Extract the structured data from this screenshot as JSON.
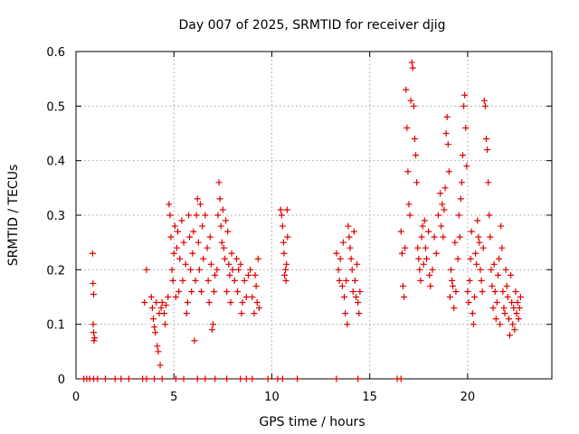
{
  "chart_data": {
    "type": "scatter",
    "title": "Day 007 of 2025, SRMTID for receiver djig",
    "xlabel": "GPS time / hours",
    "ylabel": "SRMTID / TECUs",
    "xlim": [
      0,
      24.3
    ],
    "ylim": [
      0,
      0.6
    ],
    "xticks": [
      0,
      5,
      10,
      15,
      20
    ],
    "xtick_labels": [
      "0",
      "5",
      "10",
      "15",
      "20"
    ],
    "yticks": [
      0,
      0.1,
      0.2,
      0.3,
      0.4,
      0.5,
      0.6
    ],
    "ytick_labels": [
      "0",
      "0.1",
      "0.2",
      "0.3",
      "0.4",
      "0.5",
      "0.6"
    ],
    "grid": true,
    "marker": "plus",
    "color": "#e00000",
    "series": [
      {
        "name": "SRMTID",
        "points": [
          [
            0.4,
            0
          ],
          [
            0.55,
            0
          ],
          [
            0.7,
            0
          ],
          [
            0.9,
            0
          ],
          [
            1.1,
            0
          ],
          [
            1.5,
            0
          ],
          [
            2.0,
            0
          ],
          [
            2.3,
            0
          ],
          [
            2.7,
            0
          ],
          [
            3.4,
            0
          ],
          [
            3.6,
            0
          ],
          [
            4.0,
            0
          ],
          [
            4.4,
            0
          ],
          [
            5.1,
            0
          ],
          [
            5.5,
            0
          ],
          [
            6.2,
            0
          ],
          [
            6.6,
            0
          ],
          [
            7.1,
            0
          ],
          [
            7.7,
            0
          ],
          [
            8.4,
            0
          ],
          [
            8.7,
            0
          ],
          [
            9.0,
            0
          ],
          [
            9.8,
            0
          ],
          [
            10.3,
            0
          ],
          [
            10.55,
            0
          ],
          [
            11.3,
            0
          ],
          [
            13.3,
            0
          ],
          [
            14.4,
            0
          ],
          [
            16.4,
            0
          ],
          [
            16.6,
            0
          ],
          [
            0.85,
            0.23
          ],
          [
            0.87,
            0.175
          ],
          [
            0.9,
            0.155
          ],
          [
            0.88,
            0.1
          ],
          [
            0.9,
            0.085
          ],
          [
            0.92,
            0.07
          ],
          [
            0.95,
            0.075
          ],
          [
            3.6,
            0.2
          ],
          [
            3.5,
            0.14
          ],
          [
            3.85,
            0.15
          ],
          [
            3.9,
            0.13
          ],
          [
            3.95,
            0.11
          ],
          [
            4.0,
            0.095
          ],
          [
            4.05,
            0.085
          ],
          [
            4.1,
            0.14
          ],
          [
            4.15,
            0.06
          ],
          [
            4.2,
            0.05
          ],
          [
            4.25,
            0.12
          ],
          [
            4.3,
            0.025
          ],
          [
            4.35,
            0.13
          ],
          [
            4.4,
            0.14
          ],
          [
            4.5,
            0.12
          ],
          [
            4.55,
            0.1
          ],
          [
            4.6,
            0.135
          ],
          [
            4.7,
            0.15
          ],
          [
            4.75,
            0.32
          ],
          [
            4.8,
            0.3
          ],
          [
            4.85,
            0.26
          ],
          [
            4.9,
            0.2
          ],
          [
            4.95,
            0.18
          ],
          [
            5.0,
            0.23
          ],
          [
            5.05,
            0.28
          ],
          [
            5.1,
            0.15
          ],
          [
            5.15,
            0.24
          ],
          [
            5.2,
            0.27
          ],
          [
            5.25,
            0.16
          ],
          [
            5.3,
            0.22
          ],
          [
            5.4,
            0.29
          ],
          [
            5.45,
            0.18
          ],
          [
            5.5,
            0.25
          ],
          [
            5.6,
            0.21
          ],
          [
            5.65,
            0.12
          ],
          [
            5.7,
            0.14
          ],
          [
            5.75,
            0.3
          ],
          [
            5.8,
            0.26
          ],
          [
            5.85,
            0.2
          ],
          [
            5.9,
            0.16
          ],
          [
            5.95,
            0.23
          ],
          [
            6.0,
            0.27
          ],
          [
            6.05,
            0.07
          ],
          [
            6.1,
            0.18
          ],
          [
            6.15,
            0.3
          ],
          [
            6.2,
            0.33
          ],
          [
            6.25,
            0.25
          ],
          [
            6.3,
            0.2
          ],
          [
            6.35,
            0.32
          ],
          [
            6.4,
            0.16
          ],
          [
            6.45,
            0.28
          ],
          [
            6.5,
            0.22
          ],
          [
            6.6,
            0.3
          ],
          [
            6.7,
            0.24
          ],
          [
            6.75,
            0.18
          ],
          [
            6.8,
            0.14
          ],
          [
            6.85,
            0.26
          ],
          [
            6.9,
            0.21
          ],
          [
            6.95,
            0.09
          ],
          [
            7.0,
            0.1
          ],
          [
            7.05,
            0.16
          ],
          [
            7.1,
            0.19
          ],
          [
            7.2,
            0.2
          ],
          [
            7.25,
            0.3
          ],
          [
            7.3,
            0.36
          ],
          [
            7.35,
            0.33
          ],
          [
            7.4,
            0.28
          ],
          [
            7.45,
            0.25
          ],
          [
            7.5,
            0.31
          ],
          [
            7.55,
            0.24
          ],
          [
            7.6,
            0.22
          ],
          [
            7.65,
            0.29
          ],
          [
            7.7,
            0.16
          ],
          [
            7.75,
            0.27
          ],
          [
            7.8,
            0.21
          ],
          [
            7.85,
            0.19
          ],
          [
            7.9,
            0.14
          ],
          [
            7.95,
            0.23
          ],
          [
            8.0,
            0.2
          ],
          [
            8.1,
            0.18
          ],
          [
            8.2,
            0.22
          ],
          [
            8.25,
            0.16
          ],
          [
            8.3,
            0.2
          ],
          [
            8.4,
            0.21
          ],
          [
            8.45,
            0.12
          ],
          [
            8.5,
            0.14
          ],
          [
            8.6,
            0.18
          ],
          [
            8.7,
            0.15
          ],
          [
            8.8,
            0.19
          ],
          [
            8.9,
            0.2
          ],
          [
            9.0,
            0.15
          ],
          [
            9.1,
            0.12
          ],
          [
            9.15,
            0.19
          ],
          [
            9.2,
            0.17
          ],
          [
            9.25,
            0.14
          ],
          [
            9.3,
            0.22
          ],
          [
            9.35,
            0.13
          ],
          [
            10.45,
            0.31
          ],
          [
            10.5,
            0.3
          ],
          [
            10.55,
            0.28
          ],
          [
            10.6,
            0.25
          ],
          [
            10.62,
            0.23
          ],
          [
            10.65,
            0.19
          ],
          [
            10.7,
            0.2
          ],
          [
            10.72,
            0.18
          ],
          [
            10.75,
            0.21
          ],
          [
            10.78,
            0.31
          ],
          [
            10.8,
            0.26
          ],
          [
            13.3,
            0.23
          ],
          [
            13.4,
            0.2
          ],
          [
            13.45,
            0.18
          ],
          [
            13.5,
            0.22
          ],
          [
            13.6,
            0.17
          ],
          [
            13.65,
            0.25
          ],
          [
            13.7,
            0.15
          ],
          [
            13.75,
            0.12
          ],
          [
            13.8,
            0.18
          ],
          [
            13.85,
            0.1
          ],
          [
            13.9,
            0.28
          ],
          [
            13.95,
            0.26
          ],
          [
            14.0,
            0.24
          ],
          [
            14.05,
            0.22
          ],
          [
            14.1,
            0.2
          ],
          [
            14.15,
            0.16
          ],
          [
            14.2,
            0.27
          ],
          [
            14.25,
            0.18
          ],
          [
            14.3,
            0.15
          ],
          [
            14.35,
            0.21
          ],
          [
            14.4,
            0.14
          ],
          [
            14.45,
            0.12
          ],
          [
            14.5,
            0.16
          ],
          [
            16.6,
            0.27
          ],
          [
            16.65,
            0.23
          ],
          [
            16.7,
            0.17
          ],
          [
            16.75,
            0.15
          ],
          [
            16.8,
            0.24
          ],
          [
            16.85,
            0.53
          ],
          [
            16.9,
            0.46
          ],
          [
            16.95,
            0.38
          ],
          [
            17.0,
            0.32
          ],
          [
            17.05,
            0.3
          ],
          [
            17.1,
            0.51
          ],
          [
            17.15,
            0.58
          ],
          [
            17.2,
            0.57
          ],
          [
            17.25,
            0.5
          ],
          [
            17.3,
            0.44
          ],
          [
            17.35,
            0.41
          ],
          [
            17.4,
            0.36
          ],
          [
            17.45,
            0.24
          ],
          [
            17.5,
            0.22
          ],
          [
            17.55,
            0.2
          ],
          [
            17.6,
            0.18
          ],
          [
            17.65,
            0.26
          ],
          [
            17.7,
            0.28
          ],
          [
            17.75,
            0.21
          ],
          [
            17.8,
            0.29
          ],
          [
            17.85,
            0.24
          ],
          [
            17.9,
            0.22
          ],
          [
            18.0,
            0.27
          ],
          [
            18.05,
            0.19
          ],
          [
            18.1,
            0.17
          ],
          [
            18.2,
            0.2
          ],
          [
            18.3,
            0.26
          ],
          [
            18.4,
            0.23
          ],
          [
            18.5,
            0.3
          ],
          [
            18.6,
            0.34
          ],
          [
            18.65,
            0.28
          ],
          [
            18.7,
            0.32
          ],
          [
            18.75,
            0.26
          ],
          [
            18.8,
            0.31
          ],
          [
            18.85,
            0.35
          ],
          [
            18.9,
            0.45
          ],
          [
            18.95,
            0.48
          ],
          [
            19.0,
            0.43
          ],
          [
            19.05,
            0.38
          ],
          [
            19.1,
            0.15
          ],
          [
            19.15,
            0.2
          ],
          [
            19.2,
            0.18
          ],
          [
            19.25,
            0.17
          ],
          [
            19.3,
            0.13
          ],
          [
            19.35,
            0.25
          ],
          [
            19.4,
            0.16
          ],
          [
            19.5,
            0.22
          ],
          [
            19.55,
            0.3
          ],
          [
            19.6,
            0.26
          ],
          [
            19.65,
            0.33
          ],
          [
            19.7,
            0.36
          ],
          [
            19.75,
            0.41
          ],
          [
            19.8,
            0.5
          ],
          [
            19.85,
            0.52
          ],
          [
            19.9,
            0.46
          ],
          [
            19.95,
            0.39
          ],
          [
            20.0,
            0.16
          ],
          [
            20.05,
            0.14
          ],
          [
            20.1,
            0.18
          ],
          [
            20.15,
            0.22
          ],
          [
            20.2,
            0.27
          ],
          [
            20.25,
            0.12
          ],
          [
            20.3,
            0.1
          ],
          [
            20.35,
            0.15
          ],
          [
            20.4,
            0.23
          ],
          [
            20.45,
            0.21
          ],
          [
            20.5,
            0.29
          ],
          [
            20.55,
            0.26
          ],
          [
            20.6,
            0.25
          ],
          [
            20.65,
            0.2
          ],
          [
            20.7,
            0.18
          ],
          [
            20.75,
            0.16
          ],
          [
            20.8,
            0.24
          ],
          [
            20.85,
            0.51
          ],
          [
            20.9,
            0.5
          ],
          [
            20.95,
            0.44
          ],
          [
            21.0,
            0.42
          ],
          [
            21.05,
            0.36
          ],
          [
            21.1,
            0.3
          ],
          [
            21.15,
            0.26
          ],
          [
            21.2,
            0.2
          ],
          [
            21.25,
            0.17
          ],
          [
            21.3,
            0.13
          ],
          [
            21.35,
            0.21
          ],
          [
            21.4,
            0.16
          ],
          [
            21.45,
            0.11
          ],
          [
            21.5,
            0.14
          ],
          [
            21.55,
            0.19
          ],
          [
            21.6,
            0.22
          ],
          [
            21.65,
            0.1
          ],
          [
            21.7,
            0.28
          ],
          [
            21.75,
            0.24
          ],
          [
            21.8,
            0.16
          ],
          [
            21.85,
            0.13
          ],
          [
            21.9,
            0.12
          ],
          [
            21.95,
            0.2
          ],
          [
            22.0,
            0.17
          ],
          [
            22.05,
            0.15
          ],
          [
            22.1,
            0.11
          ],
          [
            22.15,
            0.08
          ],
          [
            22.2,
            0.19
          ],
          [
            22.25,
            0.14
          ],
          [
            22.3,
            0.1
          ],
          [
            22.35,
            0.13
          ],
          [
            22.4,
            0.09
          ],
          [
            22.45,
            0.16
          ],
          [
            22.5,
            0.12
          ],
          [
            22.55,
            0.14
          ],
          [
            22.6,
            0.11
          ],
          [
            22.65,
            0.13
          ],
          [
            22.7,
            0.15
          ]
        ]
      }
    ]
  }
}
